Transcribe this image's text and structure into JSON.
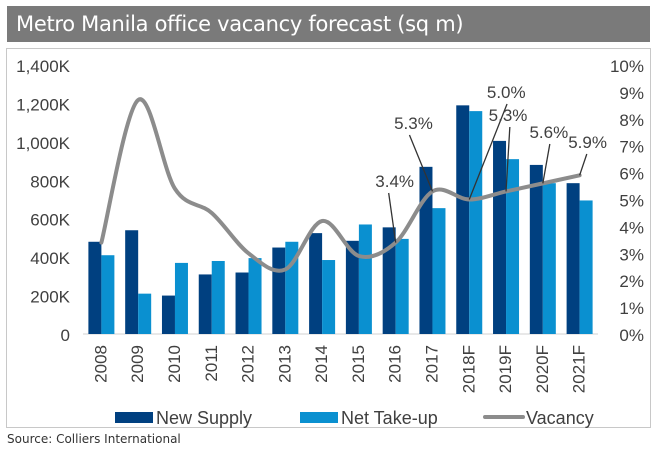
{
  "title": "Metro Manila office vacancy forecast (sq m)",
  "source": "Source: Colliers International",
  "colors": {
    "new_supply": "#004080",
    "net_takeup": "#0a90d0",
    "vacancy": "#8c8c8c"
  },
  "chart_data": {
    "type": "bar",
    "title": "Metro Manila office vacancy forecast (sq m)",
    "categories": [
      "2008",
      "2009",
      "2010",
      "2011",
      "2012",
      "2013",
      "2014",
      "2015",
      "2016",
      "2017",
      "2018F",
      "2019F",
      "2020F",
      "2021F"
    ],
    "series": [
      {
        "name": "New Supply",
        "type": "bar",
        "axis": "left",
        "values": [
          480,
          540,
          200,
          310,
          320,
          450,
          525,
          485,
          555,
          870,
          1190,
          1005,
          880,
          785
        ]
      },
      {
        "name": "Net Take-up",
        "type": "bar",
        "axis": "left",
        "values": [
          410,
          210,
          370,
          380,
          395,
          480,
          385,
          570,
          495,
          655,
          1160,
          910,
          785,
          695
        ]
      },
      {
        "name": "Vacancy",
        "type": "line",
        "axis": "right",
        "values": [
          3.4,
          8.7,
          5.4,
          4.5,
          3.0,
          2.4,
          4.2,
          2.9,
          3.4,
          5.3,
          5.0,
          5.3,
          5.6,
          5.9
        ]
      }
    ],
    "data_labels": [
      {
        "category": "2016",
        "text": "3.4%"
      },
      {
        "category": "2017",
        "text": "5.3%"
      },
      {
        "category": "2018F",
        "text": "5.0%"
      },
      {
        "category": "2019F",
        "text": "5.3%"
      },
      {
        "category": "2020F",
        "text": "5.6%"
      },
      {
        "category": "2021F",
        "text": "5.9%"
      }
    ],
    "ylim": [
      0,
      1400
    ],
    "yticks": [
      "0",
      "200K",
      "400K",
      "600K",
      "800K",
      "1,000K",
      "1,200K",
      "1,400K"
    ],
    "y2lim": [
      0,
      10
    ],
    "y2ticks": [
      "0%",
      "1%",
      "2%",
      "3%",
      "4%",
      "5%",
      "6%",
      "7%",
      "8%",
      "9%",
      "10%"
    ],
    "legend": [
      "New Supply",
      "Net Take-up",
      "Vacancy"
    ],
    "legend_position": "bottom",
    "grid": false
  }
}
